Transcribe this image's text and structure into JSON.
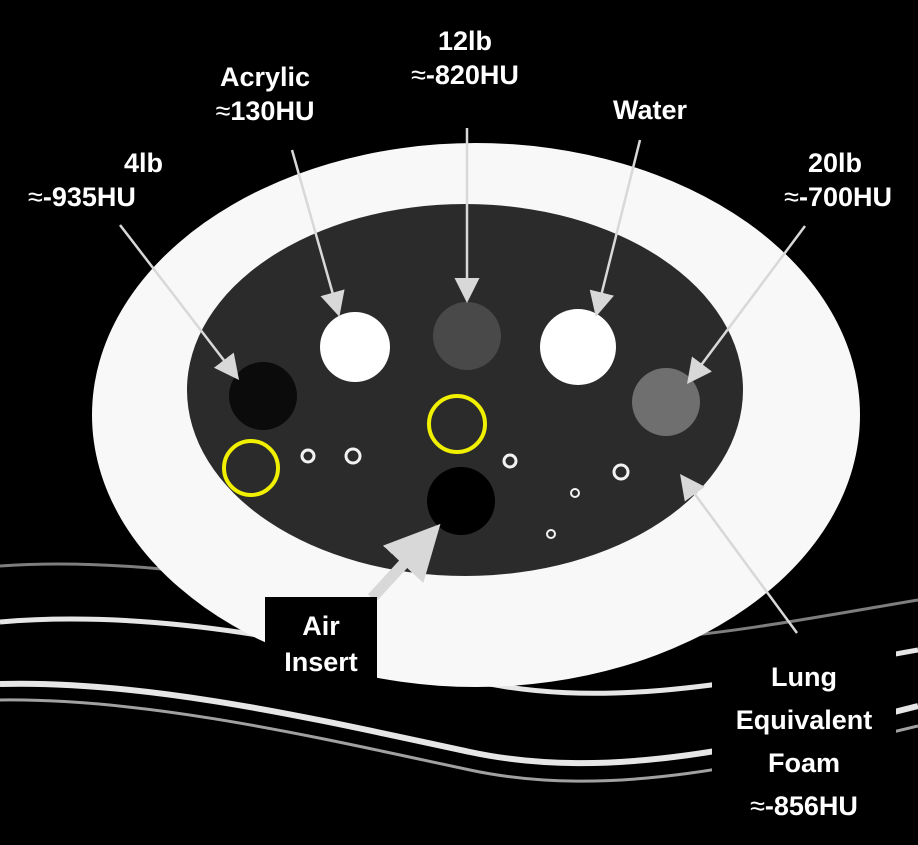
{
  "labels": {
    "lb4": {
      "name": "4lb",
      "approx": "≈",
      "hu": "-935HU"
    },
    "acrylic": {
      "name": "Acrylic",
      "approx": "≈",
      "hu": "130HU"
    },
    "lb12": {
      "name": "12lb",
      "approx": "≈",
      "hu": "-820HU"
    },
    "water": {
      "name": "Water"
    },
    "lb20": {
      "name": "20lb",
      "approx": "≈",
      "hu": "-700HU"
    },
    "air": {
      "line1": "Air",
      "line2": "Insert"
    },
    "foam": {
      "line1": "Lung",
      "line2": "Equivalent",
      "line3": "Foam",
      "approx": "≈",
      "hu": "-856HU"
    }
  },
  "colors": {
    "background": "#000000",
    "outer_ring": "#f8f8f8",
    "inner_lung": "#2b2b2b",
    "acrylic": "#ffffff",
    "water": "#ffffff",
    "lb4": "#0b0b0b",
    "lb12": "#494949",
    "lb20": "#6f6f6f",
    "air": "#000000",
    "roi_circle": "#f0f000",
    "arrow": "#d8d8d8"
  }
}
